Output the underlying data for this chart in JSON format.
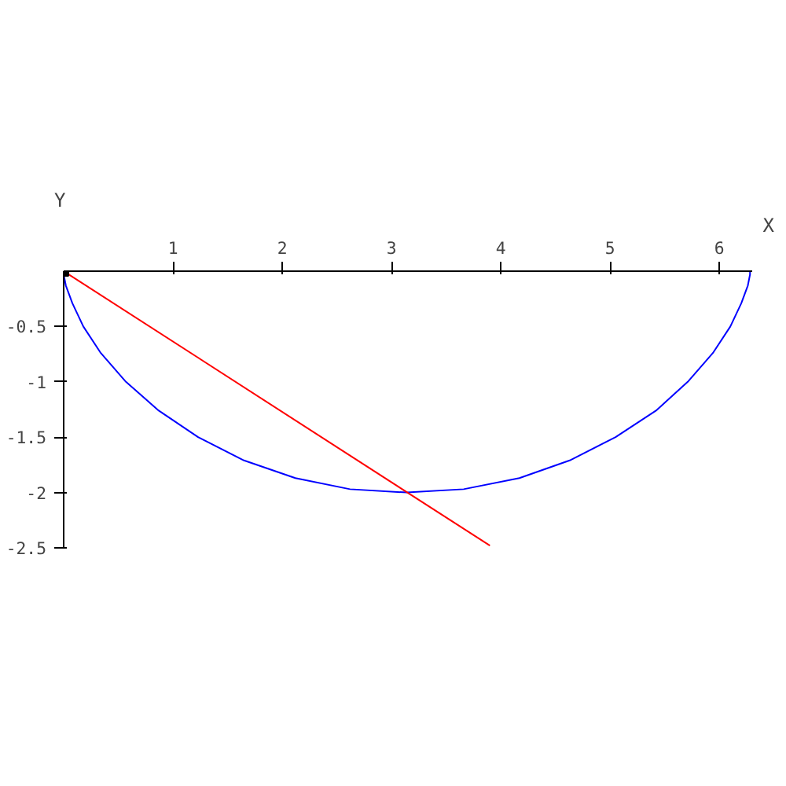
{
  "chart_data": {
    "type": "line",
    "xlabel": "X",
    "ylabel": "Y",
    "xlim": [
      0,
      6.3
    ],
    "ylim": [
      -2.5,
      0
    ],
    "xticks": [
      1,
      2,
      3,
      4,
      5,
      6
    ],
    "yticks": [
      -0.5,
      -1,
      -1.5,
      -2,
      -2.5
    ],
    "grid": false,
    "series": [
      {
        "color": "#0000ff",
        "x": [
          0,
          0,
          0.02,
          0.08,
          0.18,
          0.34,
          0.57,
          0.87,
          1.23,
          1.65,
          2.12,
          2.62,
          3.14,
          3.66,
          4.17,
          4.63,
          5.05,
          5.42,
          5.71,
          5.94,
          6.1,
          6.2,
          6.26,
          6.28,
          6.28
        ],
        "values": [
          0,
          -0.03,
          -0.13,
          -0.29,
          -0.5,
          -0.74,
          -1,
          -1.26,
          -1.5,
          -1.71,
          -1.87,
          -1.97,
          -2,
          -1.97,
          -1.87,
          -1.71,
          -1.5,
          -1.26,
          -1,
          -0.74,
          -0.5,
          -0.29,
          -0.13,
          -0.03,
          0
        ]
      },
      {
        "color": "#ff0000",
        "x": [
          0,
          3.9
        ],
        "values": [
          0,
          -2.48
        ]
      },
      {
        "type": "scatter",
        "color": "#000000",
        "marker": "square",
        "x": [
          0
        ],
        "values": [
          0
        ]
      }
    ]
  }
}
